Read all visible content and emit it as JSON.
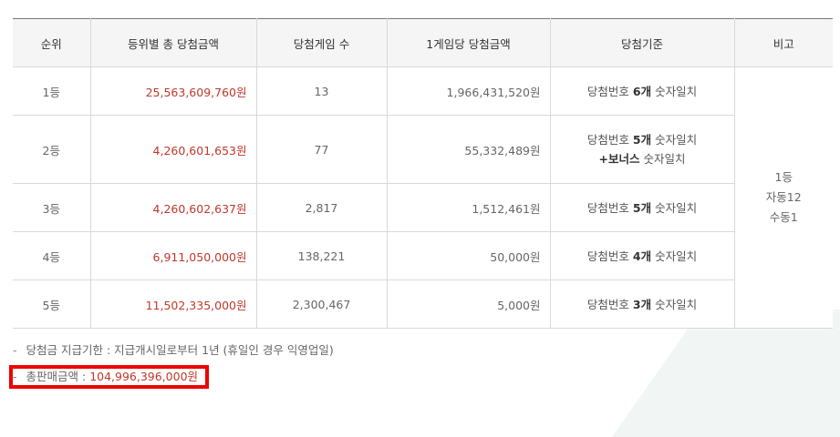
{
  "table": {
    "headers": [
      "순위",
      "등위별 총 당첨금액",
      "당첨게임 수",
      "1게임당 당첨금액",
      "당첨기준",
      "비고"
    ],
    "rows": [
      {
        "rank": "1등",
        "total": "25,563,609,760원",
        "winners": "13",
        "per_game": "1,966,431,520원",
        "criteria_pre": "당첨번호 ",
        "criteria_bold": "6개",
        "criteria_post": " 숫자일치"
      },
      {
        "rank": "2등",
        "total": "4,260,601,653원",
        "winners": "77",
        "per_game": "55,332,489원",
        "criteria_pre": "당첨번호 ",
        "criteria_bold": "5개",
        "criteria_post": " 숫자일치",
        "criteria2_bold": "+보너스",
        "criteria2_post": " 숫자일치"
      },
      {
        "rank": "3등",
        "total": "4,260,602,637원",
        "winners": "2,817",
        "per_game": "1,512,461원",
        "criteria_pre": "당첨번호 ",
        "criteria_bold": "5개",
        "criteria_post": " 숫자일치"
      },
      {
        "rank": "4등",
        "total": "6,911,050,000원",
        "winners": "138,221",
        "per_game": "50,000원",
        "criteria_pre": "당첨번호 ",
        "criteria_bold": "4개",
        "criteria_post": " 숫자일치"
      },
      {
        "rank": "5등",
        "total": "11,502,335,000원",
        "winners": "2,300,467",
        "per_game": "5,000원",
        "criteria_pre": "당첨번호 ",
        "criteria_bold": "3개",
        "criteria_post": " 숫자일치"
      }
    ],
    "remark": [
      "1등",
      "자동12",
      "수동1"
    ]
  },
  "notes": {
    "deadline": "당첨금 지급기한 : 지급개시일로부터 1년 (휴일인 경우 익영업일)",
    "sales_label": "총판매금액 : ",
    "sales_value": "104,996,396,000원"
  },
  "colors": {
    "accent_red": "#c0382b",
    "highlight_box": "#ee0000"
  }
}
